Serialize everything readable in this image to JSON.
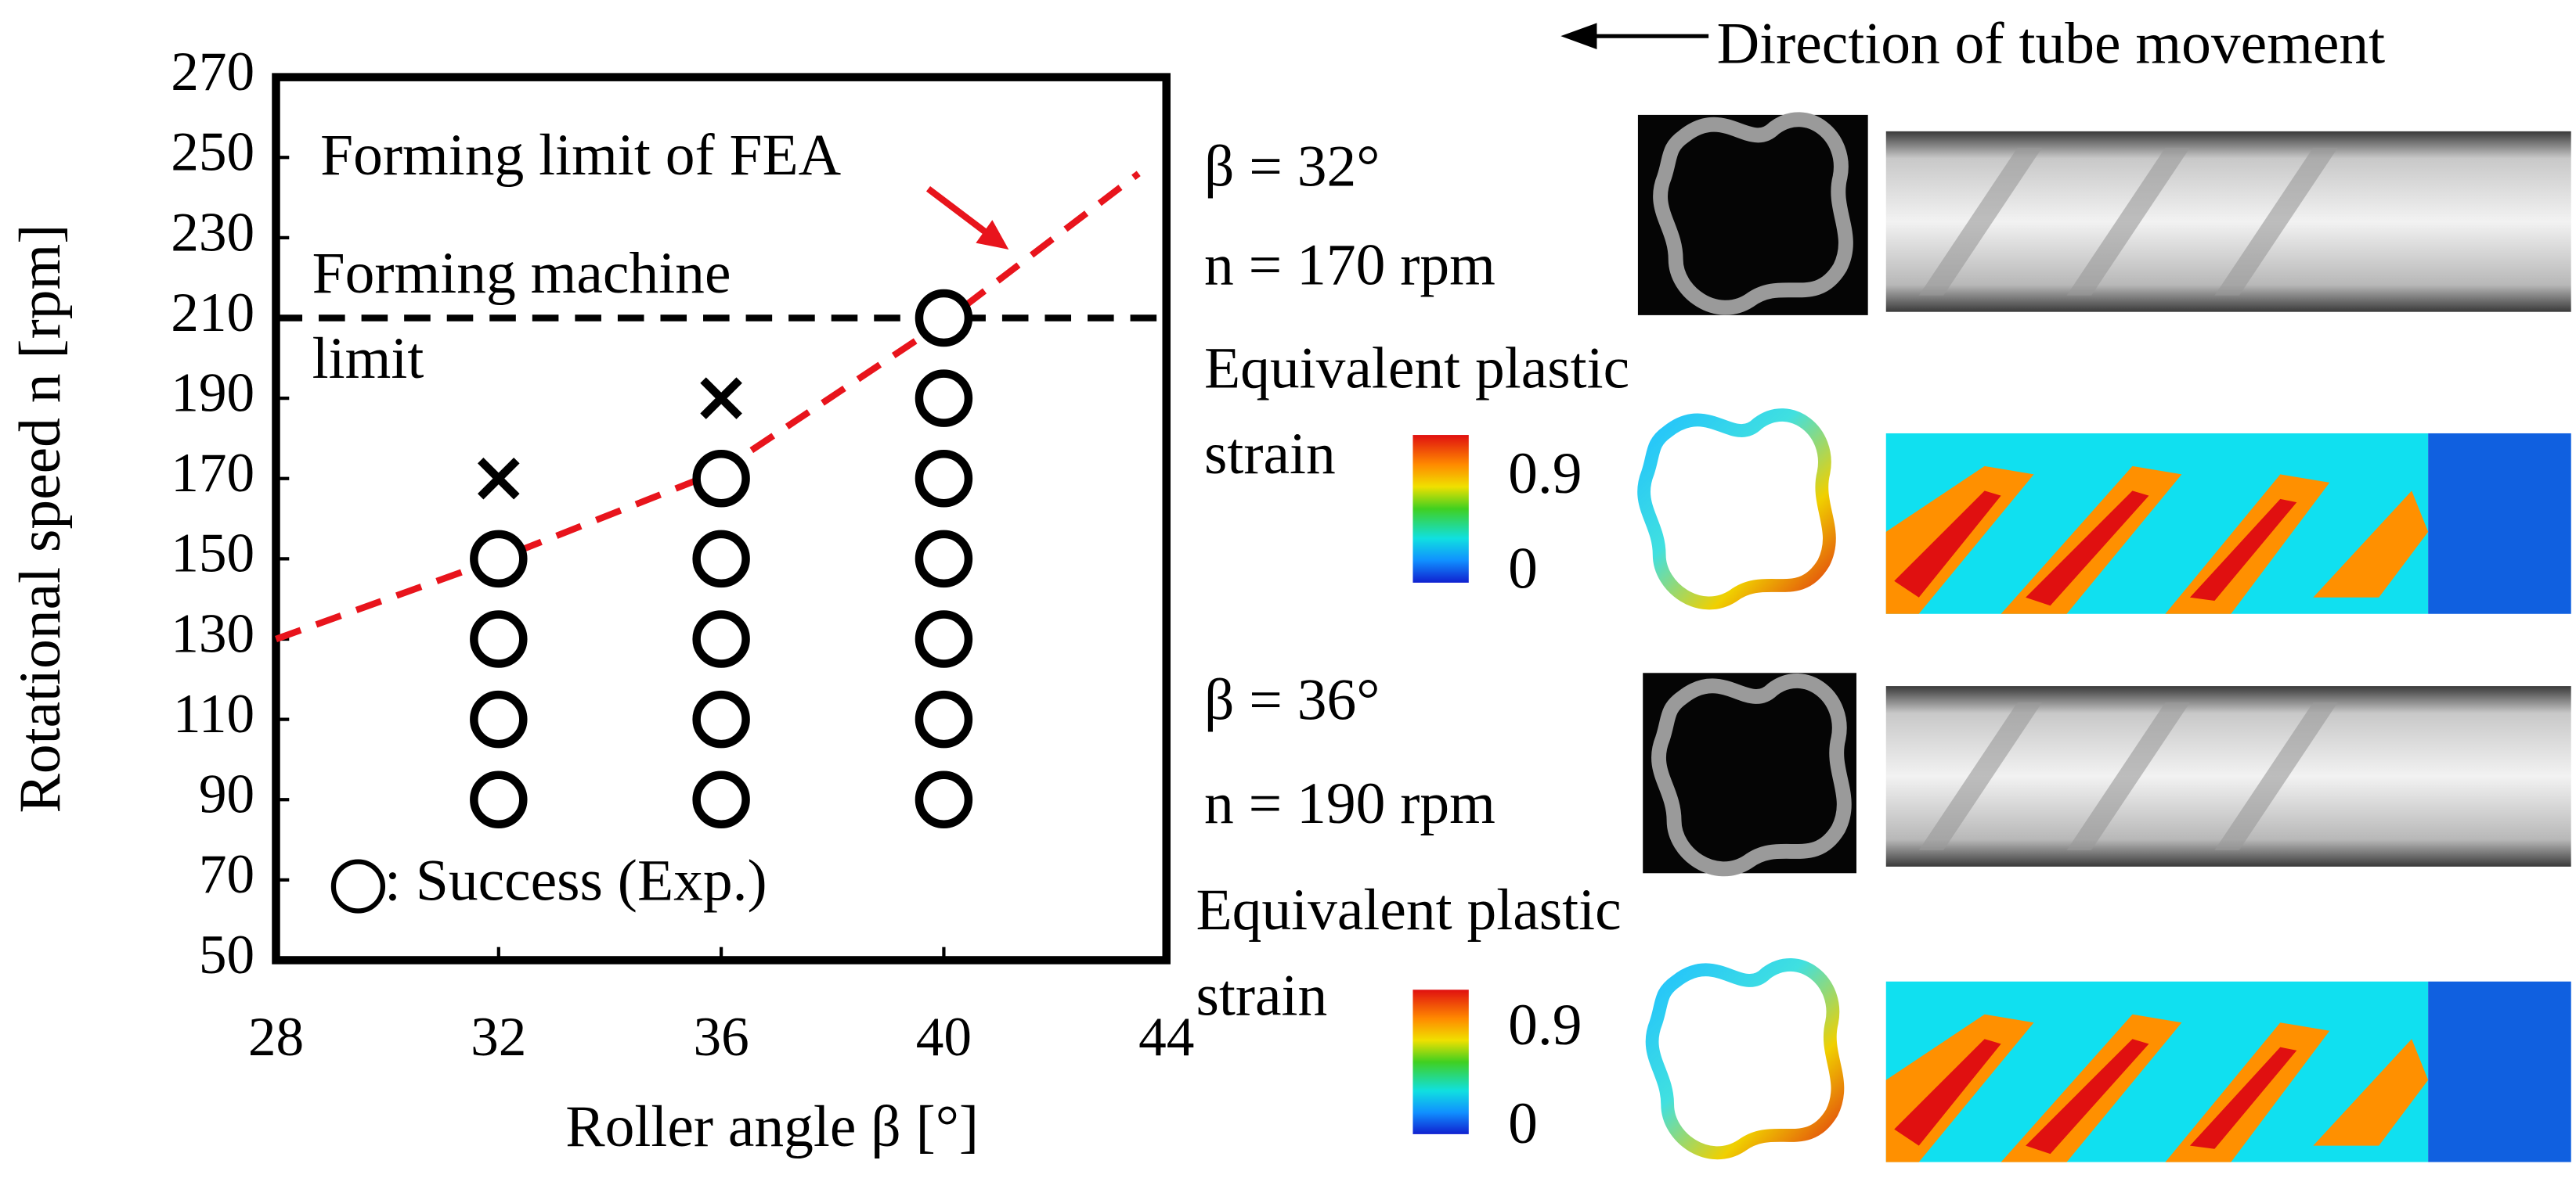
{
  "chart_data": {
    "type": "scatter",
    "xlabel": "Roller angle β [°]",
    "ylabel": "Rotational speed n [rpm]",
    "xlim": [
      28,
      44
    ],
    "ylim": [
      50,
      270
    ],
    "xticks": [
      28,
      32,
      36,
      40,
      44
    ],
    "yticks": [
      50,
      70,
      90,
      110,
      130,
      150,
      170,
      190,
      210,
      230,
      250,
      270
    ],
    "series": [
      {
        "name": ": Success (Exp.)",
        "marker": "circle",
        "color": "#000000",
        "x": [
          32,
          32,
          32,
          32,
          36,
          36,
          36,
          36,
          36,
          40,
          40,
          40,
          40,
          40,
          40,
          40
        ],
        "y": [
          90,
          110,
          130,
          150,
          90,
          110,
          130,
          150,
          170,
          90,
          110,
          130,
          150,
          170,
          190,
          210
        ]
      },
      {
        "marker": "x",
        "color": "#000000",
        "x": [
          32,
          36
        ],
        "y": [
          170,
          190
        ]
      }
    ],
    "fea_limit": {
      "label": "Forming limit of FEA",
      "color": "#e8141c",
      "x": [
        28,
        32,
        36,
        40,
        43.5
      ],
      "y": [
        130,
        150,
        172,
        209,
        246
      ]
    },
    "machine_limit": {
      "value": 210,
      "color": "#000000",
      "label": [
        "Forming machine",
        "limit"
      ]
    }
  },
  "figure": {
    "direction_label": "Direction of tube movement",
    "panels": [
      {
        "beta": "β = 32°",
        "speed": "n = 170 rpm",
        "strain_label": [
          "Equivalent plastic",
          "strain"
        ],
        "cbar_max": 0.9,
        "cbar_min": 0
      },
      {
        "beta": "β = 36°",
        "speed": "n = 190 rpm",
        "strain_label": [
          "Equivalent plastic",
          "strain"
        ],
        "cbar_max": 0.9,
        "cbar_min": 0
      }
    ]
  }
}
